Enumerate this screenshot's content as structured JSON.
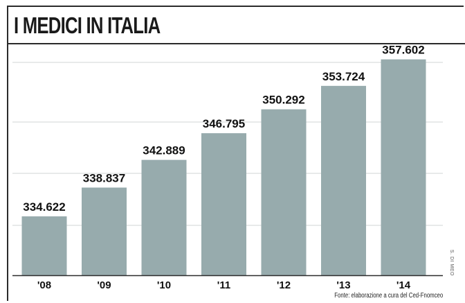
{
  "title": "I MEDICI IN ITALIA",
  "source": "Fonte: elaborazione a cura del Ced-Fnomceo",
  "credit": "S. DI MEO",
  "colors": {
    "bar": "#97abad",
    "grid": "#d0d6d6",
    "frame": "#2a2a2a"
  },
  "chart_data": {
    "type": "bar",
    "title": "I MEDICI IN ITALIA",
    "categories": [
      "'08",
      "'09",
      "'10",
      "'11",
      "'12",
      "'13",
      "'14"
    ],
    "values": [
      334622,
      338837,
      342889,
      346795,
      350292,
      353724,
      357602
    ],
    "value_labels": [
      "334.622",
      "338.837",
      "342.889",
      "346.795",
      "350.292",
      "353.724",
      "357.602"
    ],
    "xlabel": "",
    "ylabel": "",
    "ylim": [
      326000,
      360000
    ],
    "grid": true,
    "legend": "none"
  }
}
